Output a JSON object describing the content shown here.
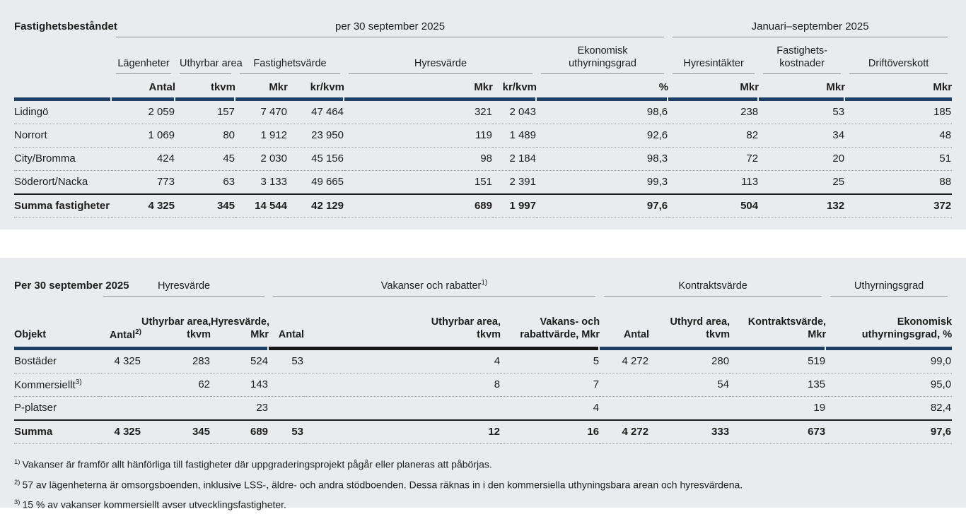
{
  "colors": {
    "block_bg": "#e9ebee",
    "page_bg": "#ffffff",
    "bar_navy": "#1e4063",
    "bar_black": "#161616",
    "text": "#1d1d1b",
    "rule_gray": "#8b9198"
  },
  "table1": {
    "title": "Fastighetsbeståndet",
    "period_left": "per 30 september 2025",
    "period_right": "Januari–september 2025",
    "groups": [
      "Lägenheter",
      "Uthyrbar area",
      "Fastighetsvärde",
      "Hyresvärde",
      "Ekonomisk\nuthyrningsgrad",
      "Hyresintäkter",
      "Fastighets-\nkostnader",
      "Driftöverskott"
    ],
    "units": [
      "Antal",
      "tkvm",
      "Mkr",
      "kr/kvm",
      "Mkr",
      "kr/kvm",
      "%",
      "Mkr",
      "Mkr",
      "Mkr"
    ],
    "rows": [
      {
        "label": "Lidingö",
        "values": [
          "2 059",
          "157",
          "7 470",
          "47 464",
          "321",
          "2 043",
          "98,6",
          "238",
          "53",
          "185"
        ]
      },
      {
        "label": "Norrort",
        "values": [
          "1 069",
          "80",
          "1 912",
          "23 950",
          "119",
          "1 489",
          "92,6",
          "82",
          "34",
          "48"
        ]
      },
      {
        "label": "City/Bromma",
        "values": [
          "424",
          "45",
          "2 030",
          "45 156",
          "98",
          "2 184",
          "98,3",
          "72",
          "20",
          "51"
        ]
      },
      {
        "label": "Söderort/Nacka",
        "values": [
          "773",
          "63",
          "3 133",
          "49 665",
          "151",
          "2 391",
          "99,3",
          "113",
          "25",
          "88"
        ]
      },
      {
        "label": "Summa fastigheter",
        "summary": true,
        "values": [
          "4 325",
          "345",
          "14 544",
          "42 129",
          "689",
          "1 997",
          "97,6",
          "504",
          "132",
          "372"
        ]
      }
    ]
  },
  "table2": {
    "title": "Per 30 september 2025",
    "groups": [
      {
        "label": "Hyresvärde",
        "sup": ""
      },
      {
        "label": "Vakanser och rabatter",
        "sup": "1)"
      },
      {
        "label": "Kontraktsvärde",
        "sup": ""
      },
      {
        "label": "Uthyrningsgrad",
        "sup": ""
      }
    ],
    "col_headers": [
      {
        "label": "Objekt",
        "sup": ""
      },
      {
        "label": "Antal",
        "sup": "2)"
      },
      {
        "label": "Uthyrbar area,\ntkvm",
        "sup": ""
      },
      {
        "label": "Hyresvärde,\nMkr",
        "sup": ""
      },
      {
        "label": "Antal",
        "sup": ""
      },
      {
        "label": "Uthyrbar area,\ntkvm",
        "sup": ""
      },
      {
        "label": "Vakans- och\nrabattvärde, Mkr",
        "sup": ""
      },
      {
        "label": "Antal",
        "sup": ""
      },
      {
        "label": "Uthyrd area,\ntkvm",
        "sup": ""
      },
      {
        "label": "Kontraktsvärde,\nMkr",
        "sup": ""
      },
      {
        "label": "Ekonomisk\nuthyrningsgrad, %",
        "sup": ""
      }
    ],
    "rows": [
      {
        "label": "Bostäder",
        "values": [
          "4 325",
          "283",
          "524",
          "53",
          "4",
          "5",
          "4 272",
          "280",
          "519",
          "99,0"
        ]
      },
      {
        "label": "Kommersiellt",
        "sup": "3)",
        "values": [
          "",
          "62",
          "143",
          "",
          "8",
          "7",
          "",
          "54",
          "135",
          "95,0"
        ]
      },
      {
        "label": "P-platser",
        "values": [
          "",
          "",
          "23",
          "",
          "",
          "4",
          "",
          "",
          "19",
          "82,4"
        ]
      },
      {
        "label": "Summa",
        "summary": true,
        "values": [
          "4 325",
          "345",
          "689",
          "53",
          "12",
          "16",
          "4 272",
          "333",
          "673",
          "97,6"
        ]
      }
    ]
  },
  "footnotes": [
    {
      "marker": "1)",
      "text": "Vakanser är framför allt hänförliga till fastigheter där uppgraderingsprojekt pågår eller planeras att påbörjas."
    },
    {
      "marker": "2)",
      "text": "57 av lägenheterna är omsorgsboenden, inklusive LSS-, äldre- och andra stödboenden. Dessa räknas in i den kommersiella uthyningsbara arean och hyresvärdena."
    },
    {
      "marker": "3)",
      "text": "15 % av vakanser kommersiellt avser utvecklingsfastigheter."
    }
  ]
}
